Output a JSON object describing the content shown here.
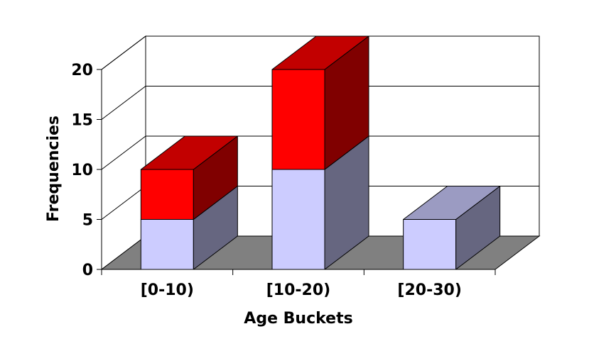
{
  "chart_data": {
    "type": "bar",
    "stacked": true,
    "three_d": true,
    "title": "",
    "xlabel": "Age Buckets",
    "ylabel": "Frequencies",
    "categories": [
      "[0-10)",
      "[10-20)",
      "[20-30)"
    ],
    "series": [
      {
        "color": "#ccccff",
        "values": [
          5,
          10,
          5
        ]
      },
      {
        "color": "#ff0000",
        "values": [
          5,
          10,
          0
        ]
      }
    ],
    "ylim": [
      0,
      20
    ],
    "yticks": [
      0,
      5,
      10,
      15,
      20
    ],
    "grid": true,
    "legend": "none",
    "colors": {
      "floor": "#808080",
      "wall": "#ffffff",
      "gridline": "#000000"
    }
  }
}
